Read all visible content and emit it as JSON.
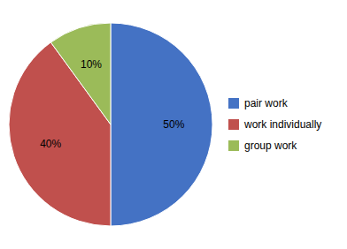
{
  "chart_data": {
    "type": "pie",
    "categories": [
      "pair work",
      "work individually",
      "group work"
    ],
    "values": [
      50,
      40,
      10
    ],
    "value_labels": [
      "50%",
      "40%",
      "10%"
    ],
    "colors": [
      "#4472C4",
      "#C0504D",
      "#9BBB59"
    ],
    "data_labels": true,
    "legend": "right"
  }
}
